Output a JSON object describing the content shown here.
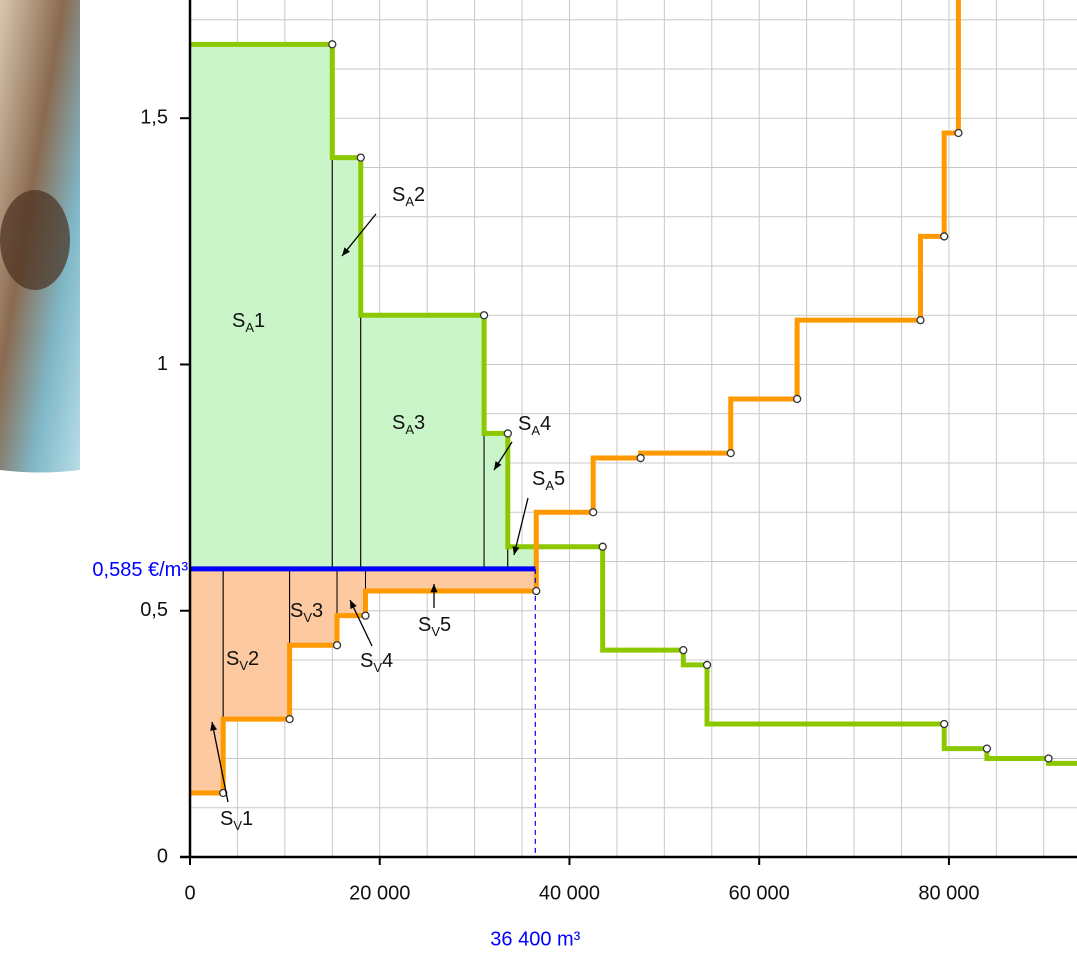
{
  "chart_data": {
    "type": "step",
    "xlim": [
      0,
      93500
    ],
    "ylim": [
      0,
      1.74
    ],
    "xticks": [
      0,
      {
        "value": 20000,
        "label": "20 000"
      },
      {
        "value": 40000,
        "label": "40 000"
      },
      {
        "value": 60000,
        "label": "60 000"
      },
      {
        "value": 80000,
        "label": "80 000"
      }
    ],
    "yticks": [
      0,
      {
        "value": 0.5,
        "label": "0,5"
      },
      1,
      {
        "value": 1.5,
        "label": "1,5"
      }
    ],
    "minor_xticks": [
      5000,
      10000,
      15000,
      20000,
      25000,
      30000,
      35000,
      40000,
      45000,
      50000,
      55000,
      60000,
      65000,
      70000,
      75000,
      80000,
      85000,
      90000
    ],
    "minor_yticks": [
      0.1,
      0.2,
      0.3,
      0.4,
      0.5,
      0.6,
      0.7,
      0.8,
      0.9,
      1.0,
      1.1,
      1.2,
      1.3,
      1.4,
      1.5,
      1.6,
      1.7
    ],
    "grid": true,
    "series": [
      {
        "color": "#8cc800",
        "fill": "#c9f5c9",
        "x": [
          15000,
          18000,
          31000,
          33500,
          43500,
          52000,
          54500,
          79500,
          84000,
          90500,
          93500
        ],
        "values": [
          1.65,
          1.42,
          1.1,
          0.86,
          0.63,
          0.42,
          0.39,
          0.27,
          0.22,
          0.2,
          0.19
        ]
      },
      {
        "color": "#ff9900",
        "fill": "#fcc9a0",
        "x": [
          3500,
          10500,
          15500,
          18500,
          36500,
          42500,
          47500,
          57000,
          64000,
          77000,
          79500,
          81000
        ],
        "values": [
          0.13,
          0.28,
          0.43,
          0.49,
          0.54,
          0.7,
          0.81,
          0.82,
          0.93,
          1.09,
          1.26,
          1.47
        ]
      }
    ],
    "equilibrium": {
      "color": "#0000ff",
      "price": 0.585,
      "price_label": "0,585 €/m³",
      "quantity": 36400,
      "quantity_label": "36 400 m³"
    },
    "area_labels": [
      {
        "symbol": "S",
        "sub": "A",
        "index": "1"
      },
      {
        "symbol": "S",
        "sub": "A",
        "index": "2"
      },
      {
        "symbol": "S",
        "sub": "A",
        "index": "3"
      },
      {
        "symbol": "S",
        "sub": "A",
        "index": "4"
      },
      {
        "symbol": "S",
        "sub": "A",
        "index": "5"
      },
      {
        "symbol": "S",
        "sub": "V",
        "index": "1"
      },
      {
        "symbol": "S",
        "sub": "V",
        "index": "2"
      },
      {
        "symbol": "S",
        "sub": "V",
        "index": "3"
      },
      {
        "symbol": "S",
        "sub": "V",
        "index": "4"
      },
      {
        "symbol": "S",
        "sub": "V",
        "index": "5"
      }
    ]
  }
}
